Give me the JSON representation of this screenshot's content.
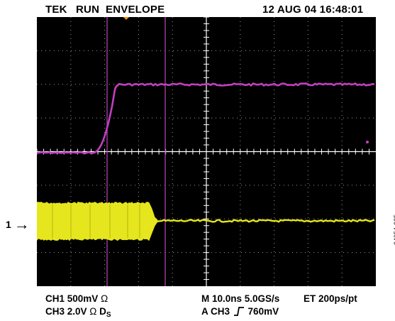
{
  "header": {
    "brand": "TEK",
    "mode": "RUN",
    "acquisition": "ENVELOPE",
    "datetime": "12 AUG 04 16:48:01"
  },
  "channel_marker": {
    "label": "1",
    "arrow": "→"
  },
  "footer": {
    "ch1_settings": "CH1 500mV",
    "ch3_settings": "CH3 2.0V",
    "ch3_unit_suffix": "D",
    "ch3_unit_subscript": "S",
    "ohm_symbol": "Ω",
    "timebase": "M 10.0ns 5.0GS/s",
    "equivalent_time": "ET 200ps/pt",
    "trigger_channel": "A CH3",
    "trigger_level": "760mV"
  },
  "figure_id": "04954-025",
  "colors": {
    "screen": "#000000",
    "grid": "#ffffff",
    "ch3_trace": "#c040c0",
    "ch1_trace": "#e6e61e",
    "cursor": "#b040b0",
    "trigger_marker": "#ff8c00"
  }
}
